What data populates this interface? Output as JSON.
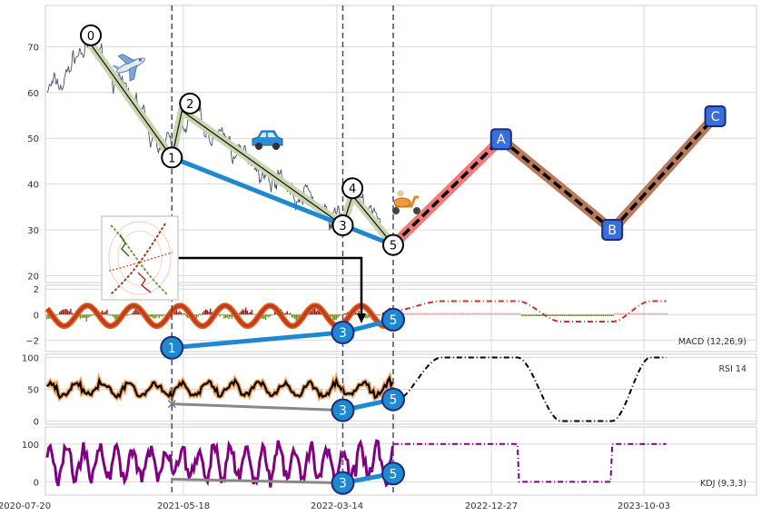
{
  "chart_data": {
    "type": "line",
    "x_ticks": [
      "2020-07-20",
      "2021-05-18",
      "2022-03-14",
      "2022-12-27",
      "2023-10-03"
    ],
    "colors": {
      "price": "#44506a",
      "wave_fill": "#c9d6b0",
      "trend": "#1e88d0",
      "projection_red": "#f07a7a",
      "projection_brown": "#b8785a",
      "label_box": "#3b6fd8",
      "dashed": "#3b4f6b",
      "macd_line": "#e06a10",
      "macd_signal": "#c0392b",
      "rsi": "#000000",
      "rsi_halo": "#f2a35a",
      "kdj": "#800080"
    },
    "panels": [
      {
        "id": "price",
        "yticks": [
          20,
          30,
          40,
          50,
          60,
          70
        ],
        "ylim": [
          18.5,
          79
        ],
        "label": ""
      },
      {
        "id": "macd",
        "yticks": [
          2,
          0,
          -2
        ],
        "ylim": [
          -2.9,
          2.3
        ],
        "label": "MACD (12,26,9)"
      },
      {
        "id": "rsi",
        "yticks": [
          100,
          50,
          0
        ],
        "ylim": [
          -5,
          105
        ],
        "label": "RSI 14"
      },
      {
        "id": "kdj",
        "yticks": [
          100,
          0
        ],
        "ylim": [
          -35,
          145
        ],
        "label": "KDJ (9,3,3)"
      }
    ],
    "price_waves": [
      {
        "label": "0",
        "date": "2020-11-23",
        "value": 70.5
      },
      {
        "label": "1",
        "date": "2021-04-26",
        "value": 45.8
      },
      {
        "label": "2",
        "date": "2021-05-15",
        "value": 56.0
      },
      {
        "label": "3",
        "date": "2022-03-25",
        "value": 31.0
      },
      {
        "label": "4",
        "date": "2022-04-12",
        "value": 37.5
      },
      {
        "label": "5",
        "date": "2022-06-27",
        "value": 26.7
      }
    ],
    "projection": [
      {
        "label": "",
        "date": "2022-06-27",
        "value": 26.7
      },
      {
        "label": "A",
        "date": "2023-01-14",
        "value": 49.8
      },
      {
        "label": "B",
        "date": "2023-08-06",
        "value": 30.0
      },
      {
        "label": "C",
        "date": "2024-02-11",
        "value": 54.8
      }
    ],
    "wave_markers": {
      "macd": [
        {
          "label": "1",
          "date": "2021-04-26",
          "value": -2.6
        },
        {
          "label": "3",
          "date": "2022-03-25",
          "value": -1.4
        },
        {
          "label": "5",
          "date": "2022-06-27",
          "value": -0.4
        }
      ],
      "rsi": [
        {
          "label": "5",
          "date": "2022-06-27",
          "value": 34
        },
        {
          "label": "3",
          "date": "2022-03-25",
          "value": 17
        }
      ],
      "kdj": [
        {
          "label": "3",
          "date": "2022-03-25",
          "value": -3
        },
        {
          "label": "5",
          "date": "2022-06-27",
          "value": 22
        }
      ]
    },
    "icons": [
      "airplane-icon",
      "car-icon",
      "scooter-icon"
    ]
  }
}
